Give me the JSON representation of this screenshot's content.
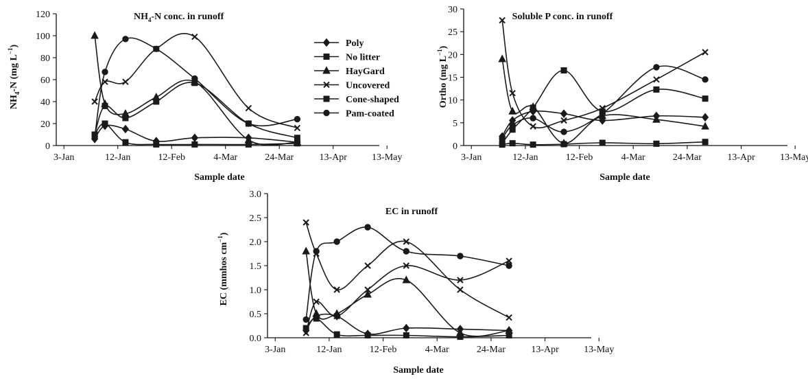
{
  "chart_data": [
    {
      "type": "line",
      "title": "NH4-N conc. in runoff",
      "xlabel": "Sample date",
      "ylabel": "NH4-N (mg L-1)",
      "x_ticks": [
        "3-Jan",
        "12-Jan",
        "12-Feb",
        "4-Mar",
        "24-Mar",
        "13-Apr",
        "13-May"
      ],
      "ylim": [
        0,
        120
      ],
      "y_ticks": [
        0,
        20,
        40,
        60,
        80,
        100,
        120
      ],
      "legend_position": "right",
      "series": [
        {
          "name": "Poly",
          "marker": "diamond",
          "points": [
            [
              7.5,
              6
            ],
            [
              9.5,
              18
            ],
            [
              13.5,
              15
            ],
            [
              19.5,
              4
            ],
            [
              27,
              7
            ],
            [
              37.5,
              7
            ],
            [
              47,
              3
            ]
          ]
        },
        {
          "name": "No litter",
          "marker": "square",
          "points": [
            [
              7.5,
              10
            ],
            [
              9.5,
              20
            ],
            [
              13.5,
              3
            ],
            [
              19.5,
              1
            ],
            [
              27,
              1
            ],
            [
              37.5,
              1
            ],
            [
              47,
              2
            ]
          ]
        },
        {
          "name": "HayGard",
          "marker": "triangle",
          "points": [
            [
              7.5,
              100
            ],
            [
              9.5,
              38
            ],
            [
              13.5,
              29
            ],
            [
              19.5,
              44
            ],
            [
              27,
              58
            ],
            [
              37.5,
              5
            ],
            [
              47,
              3
            ]
          ]
        },
        {
          "name": "Uncovered",
          "marker": "x",
          "points": [
            [
              7.5,
              40
            ],
            [
              9.5,
              58
            ],
            [
              13.5,
              58
            ],
            [
              19.5,
              88
            ],
            [
              27,
              99
            ],
            [
              37.5,
              34
            ],
            [
              47,
              16
            ]
          ]
        },
        {
          "name": "Cone-shaped",
          "marker": "square",
          "points": [
            [
              7.5,
              10
            ],
            [
              9.5,
              36
            ],
            [
              13.5,
              25
            ],
            [
              19.5,
              40
            ],
            [
              27,
              57
            ],
            [
              37.5,
              20
            ],
            [
              47,
              7
            ]
          ]
        },
        {
          "name": "Pam-coated",
          "marker": "circle",
          "points": [
            [
              7.5,
              8
            ],
            [
              9.5,
              67
            ],
            [
              13.5,
              97
            ],
            [
              19.5,
              88
            ],
            [
              27,
              61
            ],
            [
              37.5,
              20
            ],
            [
              47,
              24
            ]
          ]
        }
      ]
    },
    {
      "type": "line",
      "title": "Soluble P conc. in runoff",
      "xlabel": "Sample date",
      "ylabel": "Ortho (mg L-1)",
      "x_ticks": [
        "3-Jan",
        "12-Jan",
        "12-Feb",
        "4-Mar",
        "24-Mar",
        "13-Apr",
        "13-May"
      ],
      "ylim": [
        0,
        30
      ],
      "y_ticks": [
        0,
        5,
        10,
        15,
        20,
        25,
        30
      ],
      "series": [
        {
          "name": "Poly",
          "marker": "diamond",
          "points": [
            [
              7.5,
              2
            ],
            [
              9.5,
              5.5
            ],
            [
              13.5,
              7.5
            ],
            [
              19.5,
              7
            ],
            [
              27,
              5.5
            ],
            [
              37.5,
              6.5
            ],
            [
              47,
              6.2
            ]
          ]
        },
        {
          "name": "No litter",
          "marker": "square",
          "points": [
            [
              7.5,
              0.2
            ],
            [
              9.5,
              0.5
            ],
            [
              13.5,
              0.2
            ],
            [
              19.5,
              0.3
            ],
            [
              27,
              0.6
            ],
            [
              37.5,
              0.4
            ],
            [
              47,
              0.8
            ]
          ]
        },
        {
          "name": "HayGard",
          "marker": "triangle",
          "points": [
            [
              7.5,
              19
            ],
            [
              9.5,
              7.5
            ],
            [
              13.5,
              8.5
            ],
            [
              19.5,
              0.5
            ],
            [
              27,
              6.5
            ],
            [
              37.5,
              5.7
            ],
            [
              47,
              4.2
            ]
          ]
        },
        {
          "name": "Uncovered",
          "marker": "x",
          "points": [
            [
              7.5,
              27.5
            ],
            [
              9.5,
              11.5
            ],
            [
              13.5,
              4.2
            ],
            [
              19.5,
              5.5
            ],
            [
              27,
              8.2
            ],
            [
              37.5,
              14.5
            ],
            [
              47,
              20.5
            ]
          ]
        },
        {
          "name": "Cone-shaped",
          "marker": "square",
          "points": [
            [
              7.5,
              0.5
            ],
            [
              9.5,
              3.5
            ],
            [
              13.5,
              8.3
            ],
            [
              19.5,
              16.5
            ],
            [
              27,
              7.5
            ],
            [
              37.5,
              12.3
            ],
            [
              47,
              10.3
            ]
          ]
        },
        {
          "name": "Pam-coated",
          "marker": "circle",
          "points": [
            [
              7.5,
              1.5
            ],
            [
              9.5,
              4.5
            ],
            [
              13.5,
              6
            ],
            [
              19.5,
              3
            ],
            [
              27,
              7
            ],
            [
              37.5,
              17.2
            ],
            [
              47,
              14.5
            ]
          ]
        }
      ]
    },
    {
      "type": "line",
      "title": "EC in runoff",
      "xlabel": "Sample date",
      "ylabel": "EC (mmhos cm-1)",
      "x_ticks": [
        "3-Jan",
        "12-Jan",
        "12-Feb",
        "4-Mar",
        "24-Mar",
        "13-Apr",
        "13-May"
      ],
      "ylim": [
        0,
        3
      ],
      "y_ticks": [
        "0.0",
        "0.5",
        "1.0",
        "1.5",
        "2.0",
        "2.5",
        "3.0"
      ],
      "series": [
        {
          "name": "Poly",
          "marker": "diamond",
          "points": [
            [
              7.5,
              0.15
            ],
            [
              9.5,
              0.45
            ],
            [
              13.5,
              0.45
            ],
            [
              19.5,
              0.08
            ],
            [
              27,
              0.2
            ],
            [
              37.5,
              0.18
            ],
            [
              47,
              0.15
            ]
          ]
        },
        {
          "name": "No litter",
          "marker": "square",
          "points": [
            [
              7.5,
              0.2
            ],
            [
              9.5,
              0.4
            ],
            [
              13.5,
              0.07
            ],
            [
              19.5,
              0.05
            ],
            [
              27,
              0.05
            ],
            [
              37.5,
              0.02
            ],
            [
              47,
              0.05
            ]
          ]
        },
        {
          "name": "HayGard",
          "marker": "triangle",
          "points": [
            [
              7.5,
              1.8
            ],
            [
              9.5,
              0.5
            ],
            [
              13.5,
              0.5
            ],
            [
              19.5,
              0.9
            ],
            [
              27,
              1.2
            ],
            [
              37.5,
              0.1
            ],
            [
              47,
              0.15
            ]
          ]
        },
        {
          "name": "Uncovered",
          "marker": "x",
          "points": [
            [
              7.5,
              2.4
            ],
            [
              9.5,
              1.75
            ],
            [
              13.5,
              1.0
            ],
            [
              19.5,
              1.5
            ],
            [
              27,
              2.0
            ],
            [
              37.5,
              1.0
            ],
            [
              47,
              0.42
            ]
          ]
        },
        {
          "name": "Cone-shaped",
          "marker": "x",
          "points": [
            [
              7.5,
              0.1
            ],
            [
              9.5,
              0.75
            ],
            [
              13.5,
              0.45
            ],
            [
              19.5,
              1.0
            ],
            [
              27,
              1.5
            ],
            [
              37.5,
              1.2
            ],
            [
              47,
              1.6
            ]
          ]
        },
        {
          "name": "Pam-coated",
          "marker": "circle",
          "points": [
            [
              7.5,
              0.38
            ],
            [
              9.5,
              1.8
            ],
            [
              13.5,
              2.0
            ],
            [
              19.5,
              2.3
            ],
            [
              27,
              1.8
            ],
            [
              37.5,
              1.7
            ],
            [
              47,
              1.5
            ]
          ]
        }
      ]
    }
  ]
}
